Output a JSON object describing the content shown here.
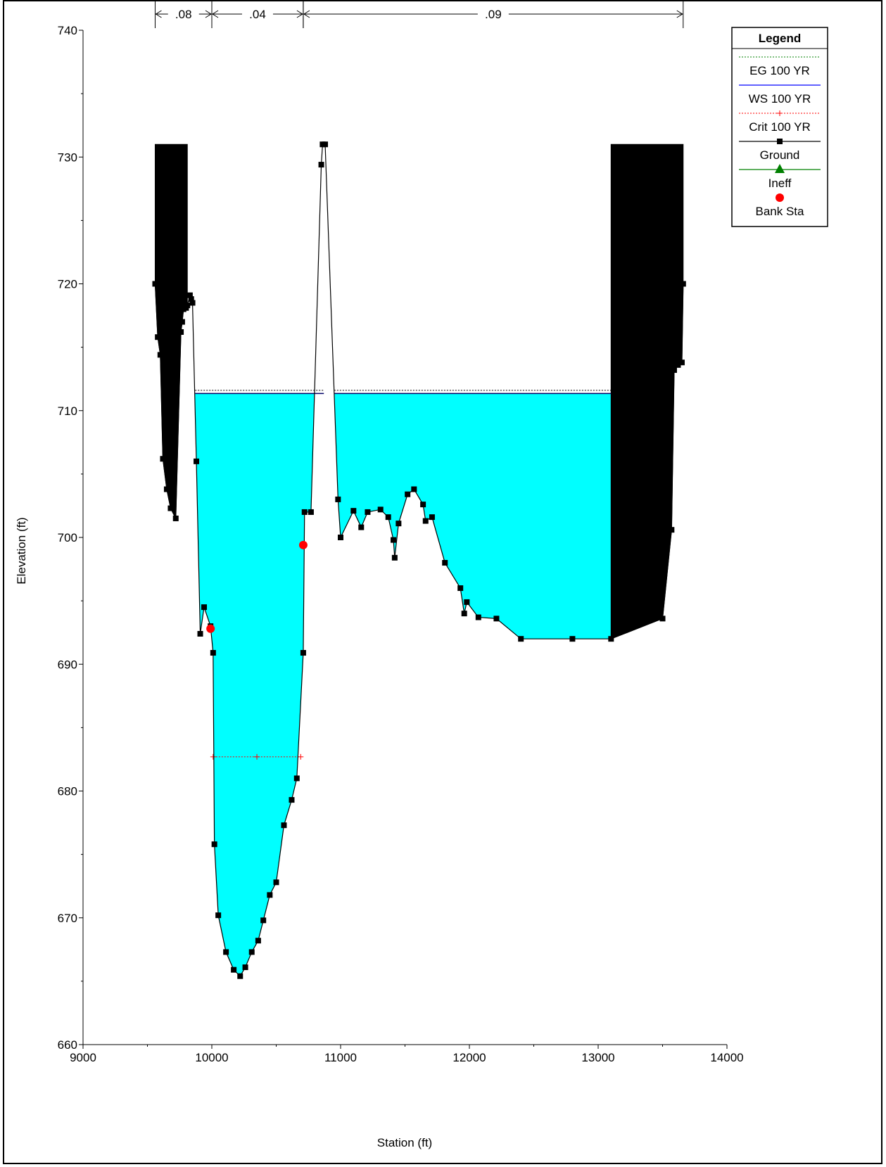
{
  "chart_data": {
    "type": "area",
    "xlabel": "Station (ft)",
    "ylabel": "Elevation (ft)",
    "xlim": [
      9000,
      14000
    ],
    "ylim": [
      660,
      740
    ],
    "xticks": [
      9000,
      10000,
      11000,
      12000,
      13000,
      14000
    ],
    "yticks": [
      660,
      670,
      680,
      690,
      700,
      710,
      720,
      730,
      740
    ],
    "grid": false,
    "legend_position": "top-right",
    "legend": {
      "title": "Legend",
      "items": [
        {
          "label": "EG 100 YR",
          "color": "#008000",
          "style": "dotted"
        },
        {
          "label": "WS 100 YR",
          "color": "#0000ff",
          "style": "solid"
        },
        {
          "label": "Crit 100 YR",
          "color": "#ff0000",
          "style": "dotted-plus"
        },
        {
          "label": "Ground",
          "color": "#000000",
          "style": "line-square"
        },
        {
          "label": "Ineff",
          "color": "#008000",
          "style": "triangle"
        },
        {
          "label": "Bank Sta",
          "color": "#ff0000",
          "style": "circle"
        }
      ]
    },
    "mannings_n": [
      {
        "label": ".08",
        "from": 9560,
        "to": 10000
      },
      {
        "label": ".04",
        "from": 10000,
        "to": 10710
      },
      {
        "label": ".09",
        "from": 10710,
        "to": 13660
      }
    ],
    "series": [
      {
        "name": "Ground",
        "x": [
          9560,
          9580,
          9600,
          9620,
          9650,
          9680,
          9720,
          9760,
          9770,
          9780,
          9800,
          9810,
          9830,
          9840,
          9850,
          9880,
          9910,
          9940,
          9990,
          10010,
          10020,
          10050,
          10110,
          10170,
          10220,
          10260,
          10310,
          10360,
          10400,
          10450,
          10500,
          10560,
          10620,
          10660,
          10710,
          10720,
          10770,
          10850,
          10860,
          10880,
          10980,
          11000,
          11100,
          11160,
          11210,
          11310,
          11370,
          11410,
          11420,
          11450,
          11520,
          11570,
          11640,
          11660,
          11710,
          11810,
          11930,
          11960,
          11980,
          12070,
          12210,
          12400,
          12800,
          13100,
          13500,
          13570,
          13590,
          13620,
          13650,
          13660
        ],
        "y": [
          720,
          715.8,
          714.4,
          706.2,
          703.8,
          702.3,
          701.5,
          716.2,
          717,
          718,
          718.1,
          718.3,
          719.1,
          718.8,
          718.5,
          706,
          692.4,
          694.5,
          693,
          690.9,
          675.8,
          670.2,
          667.3,
          665.9,
          665.4,
          666.1,
          667.3,
          668.2,
          669.8,
          671.8,
          672.8,
          677.3,
          679.3,
          681,
          690.9,
          702,
          702,
          729.4,
          731,
          731,
          703,
          700,
          702.1,
          700.8,
          702,
          702.2,
          701.6,
          699.8,
          698.4,
          701.1,
          703.4,
          703.8,
          702.6,
          701.3,
          701.6,
          698,
          696,
          694,
          694.9,
          693.7,
          693.6,
          692,
          692,
          692,
          693.6,
          700.6,
          713.2,
          713.6,
          713.8,
          720
        ]
      },
      {
        "name": "EG 100 YR",
        "y": 711.6,
        "segments": [
          [
            9870,
            10870
          ],
          [
            10950,
            13100
          ]
        ]
      },
      {
        "name": "WS 100 YR",
        "y": 711.35,
        "segments": [
          [
            9870,
            10870
          ],
          [
            10950,
            13100
          ]
        ]
      },
      {
        "name": "Crit 100 YR",
        "y": 682.7,
        "segments": [
          [
            10010,
            10690
          ]
        ]
      },
      {
        "name": "Bank Sta",
        "x": [
          9990,
          10710
        ],
        "y": [
          692.8,
          699.4
        ]
      }
    ],
    "obstructions": [
      {
        "x": [
          9560,
          9810
        ],
        "top": 731
      },
      {
        "x": [
          13100,
          13660
        ],
        "top": 731
      }
    ],
    "colors": {
      "water": "#00ffff",
      "ground": "#000000",
      "eg": "#008000",
      "ws": "#0000ff",
      "crit": "#ff0000",
      "bank": "#ff0000"
    }
  }
}
